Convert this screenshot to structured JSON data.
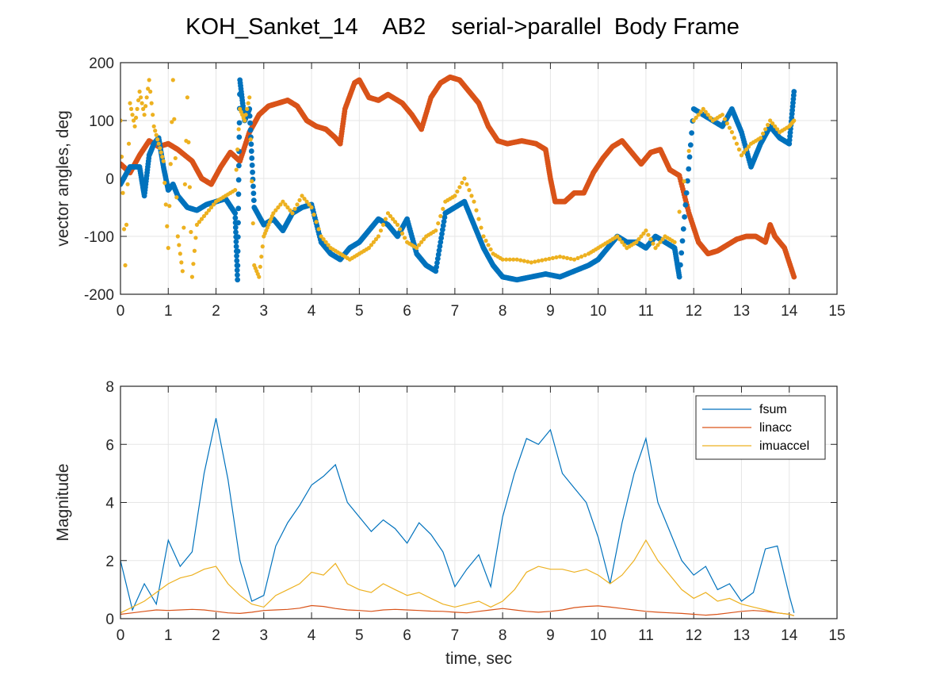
{
  "figure": {
    "title": "KOH_Sanket_14    AB2    serial->parallel  Body Frame"
  },
  "colors": {
    "blue": "#0072BD",
    "orange": "#D95319",
    "yellow": "#EDB120",
    "grid": "#e6e6e6",
    "axis": "#262626"
  },
  "chart_data": [
    {
      "type": "scatter",
      "title": "",
      "xlabel": "",
      "ylabel": "vector angles, deg",
      "xlim": [
        0,
        15
      ],
      "ylim": [
        -200,
        200
      ],
      "xticks": [
        "0",
        "1",
        "2",
        "3",
        "4",
        "5",
        "6",
        "7",
        "8",
        "9",
        "10",
        "11",
        "12",
        "13",
        "14",
        "15"
      ],
      "yticks": [
        "-200",
        "-100",
        "0",
        "100",
        "200"
      ],
      "grid": true,
      "series": [
        {
          "color": "#D95319",
          "x": [
            0,
            0.2,
            0.4,
            0.6,
            0.8,
            1.0,
            1.2,
            1.5,
            1.7,
            1.9,
            2.1,
            2.3,
            2.5,
            2.7,
            2.9,
            3.1,
            3.3,
            3.5,
            3.7,
            3.9,
            4.1,
            4.3,
            4.5,
            4.6,
            4.7,
            4.9,
            5.0,
            5.2,
            5.4,
            5.6,
            5.9,
            6.1,
            6.3,
            6.5,
            6.7,
            6.9,
            7.1,
            7.3,
            7.5,
            7.7,
            7.9,
            8.1,
            8.4,
            8.7,
            8.9,
            9.0,
            9.1,
            9.3,
            9.5,
            9.7,
            9.9,
            10.1,
            10.3,
            10.5,
            10.7,
            10.9,
            11.1,
            11.3,
            11.5,
            11.7,
            11.9,
            12.1,
            12.3,
            12.5,
            12.7,
            12.9,
            13.1,
            13.3,
            13.5,
            13.6,
            13.7,
            13.9,
            14.1
          ],
          "y": [
            25,
            10,
            40,
            65,
            55,
            60,
            50,
            30,
            0,
            -10,
            20,
            45,
            30,
            80,
            110,
            125,
            130,
            135,
            125,
            100,
            90,
            85,
            70,
            60,
            120,
            165,
            170,
            140,
            135,
            145,
            130,
            110,
            85,
            140,
            165,
            175,
            170,
            150,
            130,
            90,
            65,
            60,
            65,
            60,
            50,
            0,
            -40,
            -40,
            -25,
            -25,
            10,
            35,
            55,
            65,
            45,
            25,
            45,
            50,
            15,
            5,
            -60,
            -110,
            -130,
            -125,
            -115,
            -105,
            -100,
            -100,
            -110,
            -80,
            -100,
            -120,
            -170
          ]
        },
        {
          "color": "#0072BD",
          "x": [
            0,
            0.2,
            0.4,
            0.5,
            0.6,
            0.7,
            0.8,
            0.9,
            1.0,
            1.1,
            1.2,
            1.4,
            1.6,
            1.8,
            2.0,
            2.2,
            2.4,
            2.45,
            2.5,
            2.6,
            2.7,
            2.8,
            3.0,
            3.2,
            3.4,
            3.6,
            3.8,
            4.0,
            4.2,
            4.4,
            4.6,
            4.8,
            5.0,
            5.2,
            5.4,
            5.6,
            5.8,
            6.0,
            6.2,
            6.4,
            6.6,
            6.8,
            7.0,
            7.2,
            7.4,
            7.6,
            7.8,
            8.0,
            8.3,
            8.6,
            8.9,
            9.2,
            9.5,
            9.8,
            10.0,
            10.2,
            10.4,
            10.6,
            10.8,
            11.0,
            11.2,
            11.4,
            11.6,
            11.7,
            12.0,
            12.2,
            12.4,
            12.6,
            12.8,
            13.0,
            13.2,
            13.4,
            13.6,
            13.8,
            14.0,
            14.1
          ],
          "y": [
            -10,
            20,
            20,
            -30,
            40,
            60,
            70,
            20,
            -20,
            -10,
            -30,
            -50,
            -55,
            -45,
            -40,
            -35,
            -60,
            -175,
            170,
            100,
            120,
            -50,
            -80,
            -70,
            -90,
            -60,
            -50,
            -45,
            -110,
            -130,
            -140,
            -120,
            -110,
            -90,
            -70,
            -80,
            -100,
            -70,
            -130,
            -150,
            -160,
            -60,
            -50,
            -40,
            -80,
            -120,
            -150,
            -170,
            -175,
            -170,
            -165,
            -170,
            -160,
            -150,
            -140,
            -120,
            -100,
            -110,
            -110,
            -120,
            -100,
            -110,
            -120,
            -170,
            120,
            110,
            100,
            90,
            120,
            80,
            20,
            60,
            90,
            70,
            60,
            150
          ]
        },
        {
          "color": "#EDB120",
          "x": [
            0,
            0.1,
            0.2,
            0.3,
            0.4,
            0.5,
            0.6,
            0.7,
            0.8,
            0.9,
            1.0,
            1.1,
            1.2,
            1.3,
            1.4,
            1.5,
            1.6,
            1.8,
            2.0,
            2.2,
            2.4,
            2.5,
            2.6,
            2.7,
            2.8,
            2.9,
            3.0,
            3.1,
            3.2,
            3.4,
            3.6,
            3.8,
            4.0,
            4.2,
            4.4,
            4.6,
            4.8,
            5.0,
            5.2,
            5.4,
            5.6,
            5.8,
            6.0,
            6.2,
            6.4,
            6.6,
            6.8,
            7.0,
            7.2,
            7.4,
            7.6,
            7.8,
            8.0,
            8.3,
            8.6,
            8.9,
            9.2,
            9.5,
            9.8,
            10.0,
            10.2,
            10.4,
            10.6,
            10.8,
            11.0,
            11.2,
            11.4,
            11.6,
            12.0,
            12.2,
            12.4,
            12.6,
            12.8,
            13.0,
            13.2,
            13.4,
            13.6,
            13.8,
            14.0,
            14.1
          ],
          "y": [
            100,
            -150,
            130,
            90,
            150,
            110,
            170,
            90,
            60,
            30,
            -120,
            170,
            -100,
            -160,
            140,
            -170,
            -80,
            -60,
            -40,
            -30,
            -20,
            120,
            100,
            140,
            -150,
            -170,
            -100,
            -80,
            -60,
            -40,
            -60,
            -30,
            -50,
            -100,
            -120,
            -130,
            -140,
            -130,
            -120,
            -100,
            -60,
            -80,
            -110,
            -120,
            -100,
            -90,
            -40,
            -30,
            0,
            -40,
            -100,
            -130,
            -140,
            -140,
            -145,
            -140,
            -135,
            -140,
            -130,
            -120,
            -110,
            -100,
            -120,
            -110,
            -90,
            -120,
            -100,
            -110,
            100,
            120,
            100,
            110,
            80,
            40,
            60,
            70,
            100,
            80,
            90,
            100
          ]
        }
      ]
    },
    {
      "type": "line",
      "title": "",
      "xlabel": "time, sec",
      "ylabel": "Magnitude",
      "xlim": [
        0,
        15
      ],
      "ylim": [
        0,
        8
      ],
      "xticks": [
        "0",
        "1",
        "2",
        "3",
        "4",
        "5",
        "6",
        "7",
        "8",
        "9",
        "10",
        "11",
        "12",
        "13",
        "14",
        "15"
      ],
      "yticks": [
        "0",
        "2",
        "4",
        "6",
        "8"
      ],
      "grid": true,
      "legend": "top-right",
      "x": [
        0,
        0.25,
        0.5,
        0.75,
        1.0,
        1.25,
        1.5,
        1.75,
        2.0,
        2.25,
        2.5,
        2.75,
        3.0,
        3.25,
        3.5,
        3.75,
        4.0,
        4.25,
        4.5,
        4.75,
        5.0,
        5.25,
        5.5,
        5.75,
        6.0,
        6.25,
        6.5,
        6.75,
        7.0,
        7.25,
        7.5,
        7.75,
        8.0,
        8.25,
        8.5,
        8.75,
        9.0,
        9.25,
        9.5,
        9.75,
        10.0,
        10.25,
        10.5,
        10.75,
        11.0,
        11.25,
        11.5,
        11.75,
        12.0,
        12.25,
        12.5,
        12.75,
        13.0,
        13.25,
        13.5,
        13.75,
        14.0,
        14.1
      ],
      "series": [
        {
          "name": "fsum",
          "color": "#0072BD",
          "values": [
            2.0,
            0.3,
            1.2,
            0.5,
            2.7,
            1.8,
            2.3,
            5.0,
            6.9,
            4.8,
            2.0,
            0.6,
            0.8,
            2.5,
            3.3,
            3.9,
            4.6,
            4.9,
            5.3,
            4.0,
            3.5,
            3.0,
            3.4,
            3.1,
            2.6,
            3.3,
            2.9,
            2.3,
            1.1,
            1.7,
            2.2,
            1.1,
            3.5,
            5.0,
            6.2,
            6.0,
            6.5,
            5.0,
            4.5,
            4.0,
            2.8,
            1.2,
            3.3,
            5.0,
            6.2,
            4.0,
            3.0,
            2.0,
            1.5,
            1.8,
            1.0,
            1.2,
            0.6,
            0.9,
            2.4,
            2.5,
            0.8,
            0.2
          ]
        },
        {
          "name": "linacc",
          "color": "#D95319",
          "values": [
            0.15,
            0.2,
            0.25,
            0.3,
            0.28,
            0.3,
            0.32,
            0.3,
            0.25,
            0.2,
            0.18,
            0.22,
            0.28,
            0.3,
            0.32,
            0.36,
            0.45,
            0.42,
            0.35,
            0.3,
            0.28,
            0.25,
            0.3,
            0.32,
            0.3,
            0.28,
            0.26,
            0.25,
            0.22,
            0.2,
            0.25,
            0.3,
            0.35,
            0.3,
            0.25,
            0.22,
            0.25,
            0.3,
            0.38,
            0.42,
            0.44,
            0.4,
            0.35,
            0.3,
            0.25,
            0.22,
            0.2,
            0.18,
            0.15,
            0.12,
            0.15,
            0.2,
            0.25,
            0.28,
            0.25,
            0.2,
            0.15,
            0.1
          ]
        },
        {
          "name": "imuaccel",
          "color": "#EDB120",
          "values": [
            0.2,
            0.4,
            0.6,
            0.9,
            1.2,
            1.4,
            1.5,
            1.7,
            1.8,
            1.2,
            0.8,
            0.5,
            0.4,
            0.8,
            1.0,
            1.2,
            1.6,
            1.5,
            1.9,
            1.2,
            1.0,
            0.9,
            1.2,
            1.0,
            0.8,
            0.9,
            0.7,
            0.5,
            0.4,
            0.5,
            0.6,
            0.4,
            0.6,
            1.0,
            1.6,
            1.8,
            1.7,
            1.7,
            1.6,
            1.7,
            1.5,
            1.2,
            1.5,
            2.0,
            2.7,
            2.0,
            1.5,
            1.0,
            0.7,
            0.9,
            0.6,
            0.7,
            0.5,
            0.4,
            0.3,
            0.2,
            0.15,
            0.1
          ]
        }
      ]
    }
  ]
}
